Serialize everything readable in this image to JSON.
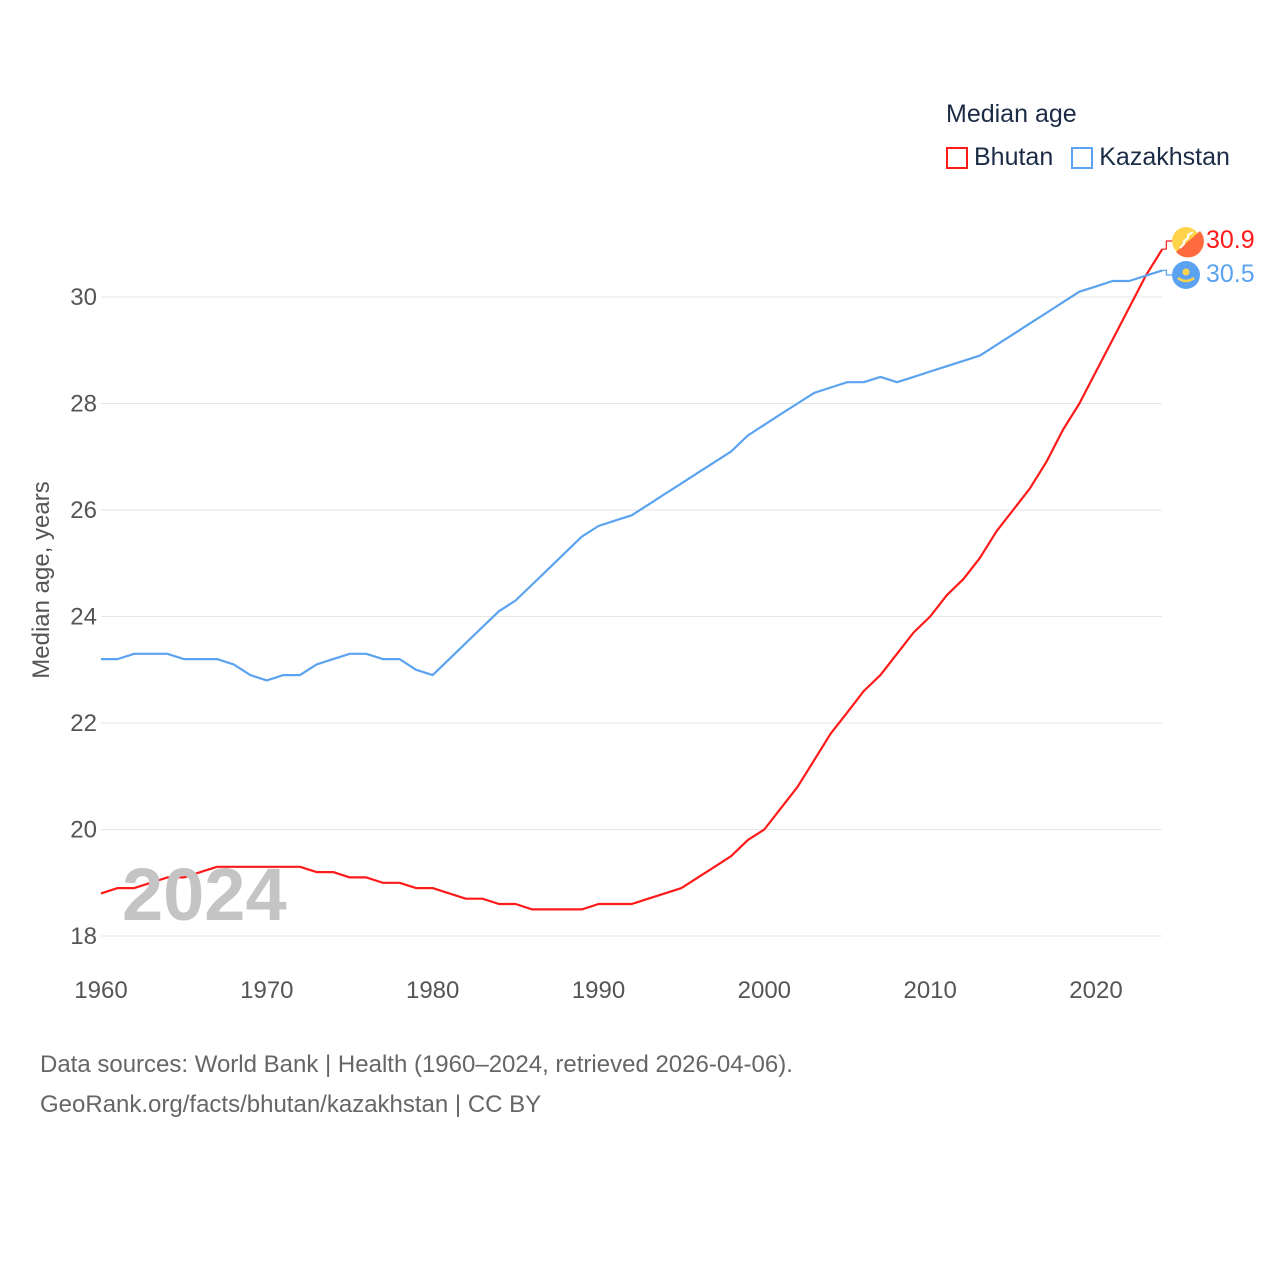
{
  "chart_data": {
    "type": "line",
    "title": "Median age",
    "xlabel": "",
    "ylabel": "Median age, years",
    "xlim": [
      1960,
      2024
    ],
    "ylim": [
      17.5,
      31.5
    ],
    "xticks": [
      1960,
      1970,
      1980,
      1990,
      2000,
      2010,
      2020
    ],
    "yticks": [
      18,
      20,
      22,
      24,
      26,
      28,
      30
    ],
    "grid": true,
    "legend_position": "top-right",
    "year_watermark": "2024",
    "x": [
      1960,
      1961,
      1962,
      1963,
      1964,
      1965,
      1966,
      1967,
      1968,
      1969,
      1970,
      1971,
      1972,
      1973,
      1974,
      1975,
      1976,
      1977,
      1978,
      1979,
      1980,
      1981,
      1982,
      1983,
      1984,
      1985,
      1986,
      1987,
      1988,
      1989,
      1990,
      1991,
      1992,
      1993,
      1994,
      1995,
      1996,
      1997,
      1998,
      1999,
      2000,
      2001,
      2002,
      2003,
      2004,
      2005,
      2006,
      2007,
      2008,
      2009,
      2010,
      2011,
      2012,
      2013,
      2014,
      2015,
      2016,
      2017,
      2018,
      2019,
      2020,
      2021,
      2022,
      2023,
      2024
    ],
    "series": [
      {
        "name": "Bhutan",
        "color": "#ff1a1a",
        "end_label": "30.9",
        "values": [
          18.8,
          18.9,
          18.9,
          19.0,
          19.1,
          19.1,
          19.2,
          19.3,
          19.3,
          19.3,
          19.3,
          19.3,
          19.3,
          19.2,
          19.2,
          19.1,
          19.1,
          19.0,
          19.0,
          18.9,
          18.9,
          18.8,
          18.7,
          18.7,
          18.6,
          18.6,
          18.5,
          18.5,
          18.5,
          18.5,
          18.6,
          18.6,
          18.6,
          18.7,
          18.8,
          18.9,
          19.1,
          19.3,
          19.5,
          19.8,
          20.0,
          20.4,
          20.8,
          21.3,
          21.8,
          22.2,
          22.6,
          22.9,
          23.3,
          23.7,
          24.0,
          24.4,
          24.7,
          25.1,
          25.6,
          26.0,
          26.4,
          26.9,
          27.5,
          28.0,
          28.6,
          29.2,
          29.8,
          30.4,
          30.9
        ]
      },
      {
        "name": "Kazakhstan",
        "color": "#5ba3f0",
        "end_label": "30.5",
        "values": [
          23.2,
          23.2,
          23.3,
          23.3,
          23.3,
          23.2,
          23.2,
          23.2,
          23.1,
          22.9,
          22.8,
          22.9,
          22.9,
          23.1,
          23.2,
          23.3,
          23.3,
          23.2,
          23.2,
          23.0,
          22.9,
          23.2,
          23.5,
          23.8,
          24.1,
          24.3,
          24.6,
          24.9,
          25.2,
          25.5,
          25.7,
          25.8,
          25.9,
          26.1,
          26.3,
          26.5,
          26.7,
          26.9,
          27.1,
          27.4,
          27.6,
          27.8,
          28.0,
          28.2,
          28.3,
          28.4,
          28.4,
          28.5,
          28.4,
          28.5,
          28.6,
          28.7,
          28.8,
          28.9,
          29.1,
          29.3,
          29.5,
          29.7,
          29.9,
          30.1,
          30.2,
          30.3,
          30.3,
          30.4,
          30.5
        ]
      }
    ]
  },
  "footer": {
    "line1": "Data sources: World Bank | Health (1960–2024, retrieved 2026-04-06).",
    "line2": "GeoRank.org/facts/bhutan/kazakhstan | CC BY"
  }
}
